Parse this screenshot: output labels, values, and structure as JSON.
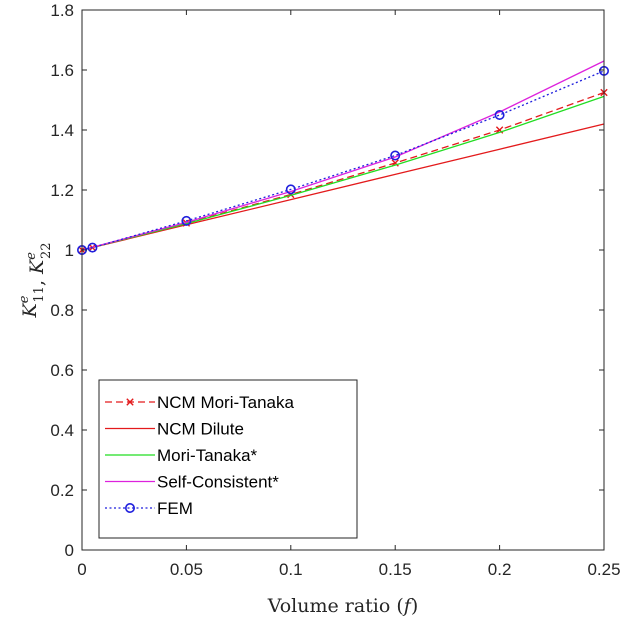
{
  "chart_data": {
    "type": "line",
    "xlabel": "Volume ratio (f)",
    "ylabel": "K11e, K22e",
    "xlim": [
      0,
      0.25
    ],
    "ylim": [
      0,
      1.8
    ],
    "xticks": [
      0,
      0.05,
      0.1,
      0.15,
      0.2,
      0.25
    ],
    "xtick_labels": [
      "0",
      "0.05",
      "0.1",
      "0.15",
      "0.2",
      "0.25"
    ],
    "yticks": [
      0,
      0.2,
      0.4,
      0.6,
      0.8,
      1,
      1.2,
      1.4,
      1.6,
      1.8
    ],
    "ytick_labels": [
      "0",
      "0.2",
      "0.4",
      "0.6",
      "0.8",
      "1",
      "1.2",
      "1.4",
      "1.6",
      "1.8"
    ],
    "grid": false,
    "legend_position": "bottom-left",
    "series": [
      {
        "name": "NCM Mori-Tanaka",
        "color": "#e31a1c",
        "style": "dashed",
        "marker": "x",
        "x": [
          0,
          0.005,
          0.05,
          0.1,
          0.15,
          0.2,
          0.25
        ],
        "y": [
          1.0,
          1.008,
          1.09,
          1.185,
          1.29,
          1.4,
          1.525
        ]
      },
      {
        "name": "NCM Dilute",
        "color": "#e31a1c",
        "style": "solid",
        "marker": "none",
        "x": [
          0,
          0.05,
          0.1,
          0.15,
          0.2,
          0.25
        ],
        "y": [
          1.0,
          1.084,
          1.168,
          1.252,
          1.336,
          1.42
        ]
      },
      {
        "name": "Mori-Tanaka*",
        "color": "#22dd22",
        "style": "solid",
        "marker": "none",
        "x": [
          0,
          0.05,
          0.1,
          0.15,
          0.2,
          0.25
        ],
        "y": [
          1.0,
          1.088,
          1.182,
          1.283,
          1.392,
          1.512
        ]
      },
      {
        "name": "Self-Consistent*",
        "color": "#dd22dd",
        "style": "solid",
        "marker": "none",
        "x": [
          0,
          0.05,
          0.1,
          0.15,
          0.2,
          0.25
        ],
        "y": [
          1.0,
          1.092,
          1.195,
          1.31,
          1.46,
          1.63
        ]
      },
      {
        "name": "FEM",
        "color": "#1f1fdd",
        "style": "dotted",
        "marker": "circle",
        "x": [
          0,
          0.005,
          0.05,
          0.1,
          0.15,
          0.2,
          0.25
        ],
        "y": [
          1.0,
          1.008,
          1.097,
          1.202,
          1.315,
          1.45,
          1.597
        ]
      }
    ]
  }
}
